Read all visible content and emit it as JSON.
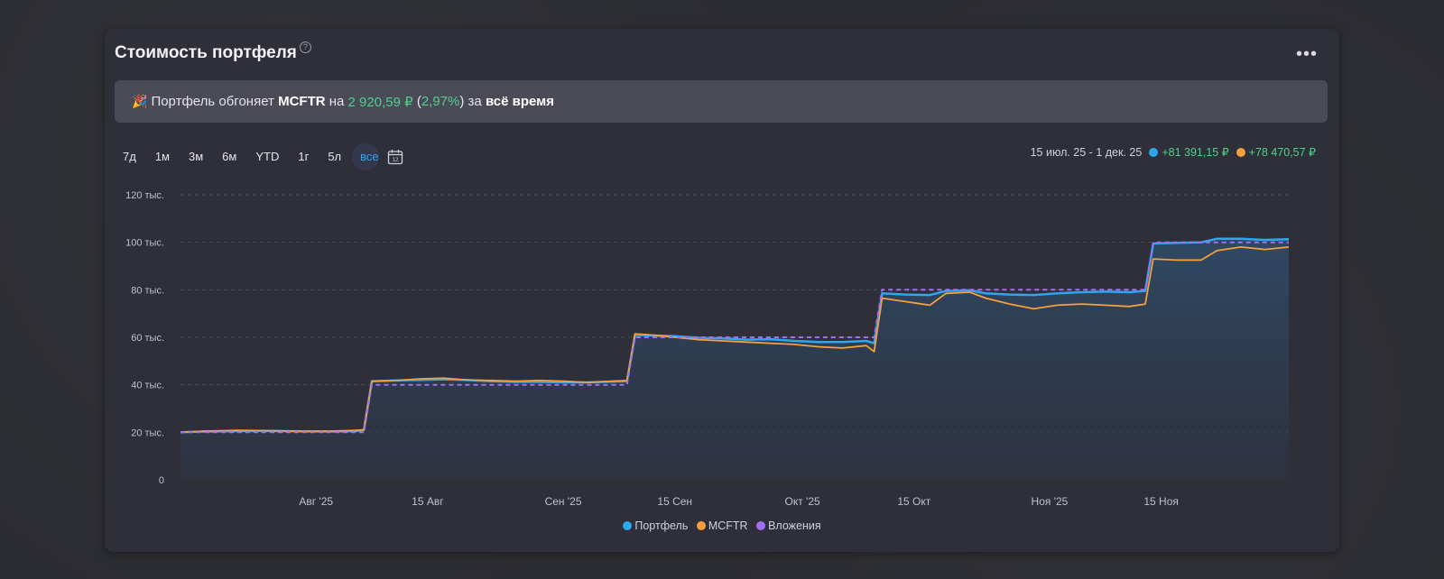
{
  "card": {
    "title": "Стоимость портфеля",
    "help_icon": "?",
    "more_icon": "•••"
  },
  "banner": {
    "icon": "🎉",
    "prefix": "Портфель обгоняет ",
    "benchmark": "MCFTR",
    "on": " на ",
    "amount": "2 920,59 ₽",
    "pct_open": " (",
    "pct": "2,97%",
    "pct_close": ") за ",
    "period": "всё время"
  },
  "ranges": [
    "7д",
    "1м",
    "3м",
    "6м",
    "YTD",
    "1г",
    "5л",
    "все"
  ],
  "active_range": "все",
  "period": {
    "label": "15 июл. 25 - 1 дек. 25",
    "portfolio_change": "+81 391,15 ₽",
    "mcftr_change": "+78 470,57 ₽"
  },
  "colors": {
    "portfolio": "#2ea7ee",
    "mcftr": "#f5a03c",
    "contributions": "#a66cf0",
    "positive": "#4fd08a"
  },
  "chart_data": {
    "type": "line",
    "x_start": "2025-07-15",
    "x_end": "2025-12-01",
    "x_ticks": [
      {
        "date": "2025-08-01",
        "label": "Авг '25"
      },
      {
        "date": "2025-08-15",
        "label": "15 Авг"
      },
      {
        "date": "2025-09-01",
        "label": "Сен '25"
      },
      {
        "date": "2025-09-15",
        "label": "15 Сен"
      },
      {
        "date": "2025-10-01",
        "label": "Окт '25"
      },
      {
        "date": "2025-10-15",
        "label": "15 Окт"
      },
      {
        "date": "2025-11-01",
        "label": "Ноя '25"
      },
      {
        "date": "2025-11-15",
        "label": "15 Ноя"
      }
    ],
    "y_ticks": [
      {
        "value": 0,
        "label": "0"
      },
      {
        "value": 20000,
        "label": "20 тыс."
      },
      {
        "value": 40000,
        "label": "40 тыс."
      },
      {
        "value": 60000,
        "label": "60 тыс."
      },
      {
        "value": 80000,
        "label": "80 тыс."
      },
      {
        "value": 100000,
        "label": "100 тыс."
      },
      {
        "value": 120000,
        "label": "120 тыс."
      }
    ],
    "ylim": [
      0,
      120000
    ],
    "grid": true,
    "legend_position": "bottom",
    "series": [
      {
        "name": "Портфель",
        "key": "portfolio",
        "style": "area",
        "points": [
          [
            "2025-07-15",
            20000
          ],
          [
            "2025-07-18",
            20300
          ],
          [
            "2025-07-22",
            20500
          ],
          [
            "2025-07-26",
            20600
          ],
          [
            "2025-07-30",
            20400
          ],
          [
            "2025-08-03",
            20300
          ],
          [
            "2025-08-06",
            20500
          ],
          [
            "2025-08-07",
            21000
          ],
          [
            "2025-08-08",
            41500
          ],
          [
            "2025-08-11",
            41800
          ],
          [
            "2025-08-14",
            42000
          ],
          [
            "2025-08-17",
            42300
          ],
          [
            "2025-08-20",
            42000
          ],
          [
            "2025-08-23",
            41500
          ],
          [
            "2025-08-26",
            41200
          ],
          [
            "2025-08-29",
            41200
          ],
          [
            "2025-09-01",
            41000
          ],
          [
            "2025-09-04",
            41000
          ],
          [
            "2025-09-07",
            41300
          ],
          [
            "2025-09-09",
            41500
          ],
          [
            "2025-09-10",
            61000
          ],
          [
            "2025-09-12",
            60800
          ],
          [
            "2025-09-15",
            60500
          ],
          [
            "2025-09-18",
            59800
          ],
          [
            "2025-09-21",
            59500
          ],
          [
            "2025-09-24",
            59000
          ],
          [
            "2025-09-27",
            59200
          ],
          [
            "2025-09-30",
            58500
          ],
          [
            "2025-10-03",
            58000
          ],
          [
            "2025-10-06",
            58000
          ],
          [
            "2025-10-09",
            58500
          ],
          [
            "2025-10-10",
            57500
          ],
          [
            "2025-10-11",
            78500
          ],
          [
            "2025-10-14",
            78000
          ],
          [
            "2025-10-17",
            77800
          ],
          [
            "2025-10-19",
            79500
          ],
          [
            "2025-10-22",
            79800
          ],
          [
            "2025-10-24",
            78500
          ],
          [
            "2025-10-27",
            78000
          ],
          [
            "2025-10-30",
            77800
          ],
          [
            "2025-11-02",
            78500
          ],
          [
            "2025-11-05",
            79000
          ],
          [
            "2025-11-08",
            79200
          ],
          [
            "2025-11-11",
            79000
          ],
          [
            "2025-11-13",
            79500
          ],
          [
            "2025-11-14",
            99500
          ],
          [
            "2025-11-17",
            99800
          ],
          [
            "2025-11-20",
            100000
          ],
          [
            "2025-11-22",
            101500
          ],
          [
            "2025-11-25",
            101500
          ],
          [
            "2025-11-28",
            101000
          ],
          [
            "2025-12-01",
            101300
          ]
        ]
      },
      {
        "name": "MCFTR",
        "key": "mcftr",
        "style": "line",
        "points": [
          [
            "2025-07-15",
            20000
          ],
          [
            "2025-07-18",
            20500
          ],
          [
            "2025-07-22",
            20800
          ],
          [
            "2025-07-26",
            20700
          ],
          [
            "2025-07-30",
            20400
          ],
          [
            "2025-08-03",
            20500
          ],
          [
            "2025-08-06",
            20800
          ],
          [
            "2025-08-07",
            21000
          ],
          [
            "2025-08-08",
            41500
          ],
          [
            "2025-08-11",
            41800
          ],
          [
            "2025-08-14",
            42500
          ],
          [
            "2025-08-17",
            42800
          ],
          [
            "2025-08-20",
            42000
          ],
          [
            "2025-08-23",
            41800
          ],
          [
            "2025-08-26",
            41500
          ],
          [
            "2025-08-29",
            41800
          ],
          [
            "2025-09-01",
            41500
          ],
          [
            "2025-09-04",
            41000
          ],
          [
            "2025-09-07",
            41500
          ],
          [
            "2025-09-09",
            41800
          ],
          [
            "2025-09-10",
            61500
          ],
          [
            "2025-09-12",
            61000
          ],
          [
            "2025-09-15",
            60000
          ],
          [
            "2025-09-18",
            59000
          ],
          [
            "2025-09-21",
            58500
          ],
          [
            "2025-09-24",
            58000
          ],
          [
            "2025-09-27",
            57500
          ],
          [
            "2025-09-30",
            57000
          ],
          [
            "2025-10-03",
            56000
          ],
          [
            "2025-10-06",
            55500
          ],
          [
            "2025-10-09",
            56500
          ],
          [
            "2025-10-10",
            54000
          ],
          [
            "2025-10-11",
            76500
          ],
          [
            "2025-10-14",
            75000
          ],
          [
            "2025-10-17",
            73500
          ],
          [
            "2025-10-19",
            78500
          ],
          [
            "2025-10-22",
            79000
          ],
          [
            "2025-10-24",
            76500
          ],
          [
            "2025-10-27",
            74000
          ],
          [
            "2025-10-30",
            72000
          ],
          [
            "2025-11-02",
            73500
          ],
          [
            "2025-11-05",
            74000
          ],
          [
            "2025-11-08",
            73500
          ],
          [
            "2025-11-11",
            73000
          ],
          [
            "2025-11-13",
            74000
          ],
          [
            "2025-11-14",
            93000
          ],
          [
            "2025-11-17",
            92500
          ],
          [
            "2025-11-20",
            92500
          ],
          [
            "2025-11-22",
            96500
          ],
          [
            "2025-11-25",
            98000
          ],
          [
            "2025-11-28",
            97000
          ],
          [
            "2025-12-01",
            98000
          ]
        ]
      },
      {
        "name": "Вложения",
        "key": "contributions",
        "style": "dashed-step",
        "points": [
          [
            "2025-07-15",
            20000
          ],
          [
            "2025-08-07",
            20000
          ],
          [
            "2025-08-08",
            40000
          ],
          [
            "2025-09-09",
            40000
          ],
          [
            "2025-09-10",
            60000
          ],
          [
            "2025-10-10",
            60000
          ],
          [
            "2025-10-11",
            80000
          ],
          [
            "2025-11-13",
            80000
          ],
          [
            "2025-11-14",
            100000
          ],
          [
            "2025-12-01",
            100000
          ]
        ]
      }
    ]
  }
}
